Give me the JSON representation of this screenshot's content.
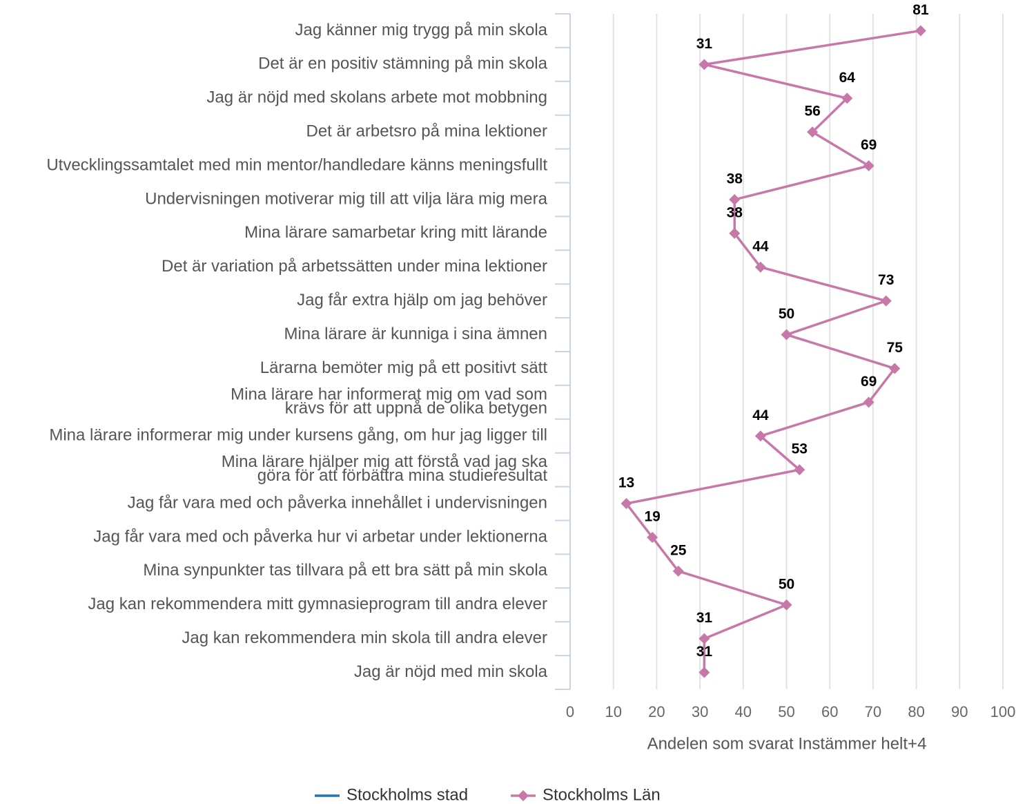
{
  "chart_data": {
    "type": "line",
    "x_label": "Andelen som svarat Instämmer helt+4",
    "categories": [
      "Jag känner mig trygg på min skola",
      "Det är en positiv stämning på min skola",
      "Jag är nöjd med skolans arbete mot mobbning",
      "Det är arbetsro på mina lektioner",
      "Utvecklingssamtalet med min mentor/handledare känns meningsfullt",
      "Undervisningen motiverar mig till att vilja lära mig mera",
      "Mina lärare samarbetar kring mitt lärande",
      "Det är variation på arbetssätten under mina lektioner",
      "Jag får extra hjälp om jag behöver",
      "Mina lärare är kunniga i sina ämnen",
      "Lärarna bemöter mig på ett positivt sätt",
      "Mina lärare har informerat mig om vad som\nkrävs för att uppnå de olika betygen",
      "Mina lärare informerar mig under kursens gång, om hur jag ligger till",
      "Mina lärare hjälper mig att förstå vad jag ska\ngöra för att förbättra mina studieresultat",
      "Jag får vara med och påverka innehållet i undervisningen",
      "Jag får vara med och påverka hur vi arbetar under lektionerna",
      "Mina synpunkter tas tillvara på ett bra sätt på min skola",
      "Jag kan rekommendera mitt gymnasieprogram till andra elever",
      "Jag kan rekommendera min skola till andra elever",
      "Jag är nöjd med min skola"
    ],
    "series": [
      {
        "name": "Stockholms stad",
        "color": "#1f77b4",
        "values": [
          null,
          null,
          null,
          null,
          null,
          null,
          null,
          null,
          null,
          null,
          null,
          null,
          null,
          null,
          null,
          null,
          null,
          null,
          null,
          null
        ]
      },
      {
        "name": "Stockholms Län",
        "color": "#c878a8",
        "values": [
          81,
          31,
          64,
          56,
          69,
          38,
          38,
          44,
          73,
          50,
          75,
          69,
          44,
          53,
          13,
          19,
          25,
          50,
          31,
          31
        ]
      }
    ],
    "xlim": [
      0,
      100
    ],
    "xticks": [
      0,
      10,
      20,
      30,
      40,
      50,
      60,
      70,
      80,
      90,
      100
    ],
    "grid": true
  }
}
